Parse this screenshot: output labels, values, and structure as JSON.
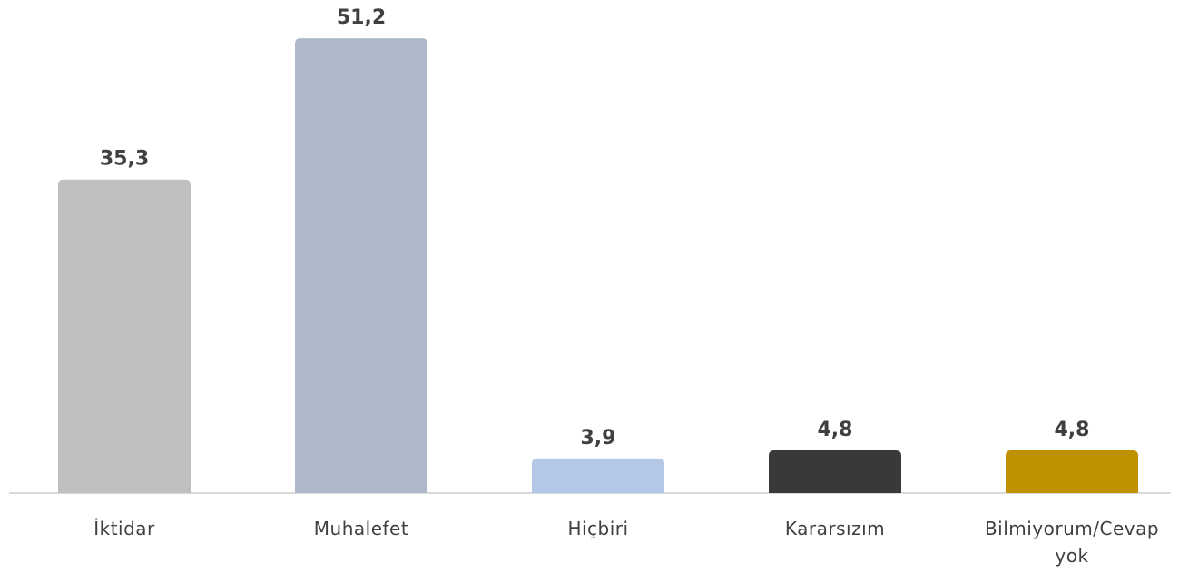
{
  "chart_data": {
    "type": "bar",
    "categories": [
      "İktidar",
      "Muhalefet",
      "Hiçbiri",
      "Kararsızım",
      "Bilmiyorum/Cevap yok"
    ],
    "values": [
      35.3,
      51.2,
      3.9,
      4.8,
      4.8
    ],
    "value_labels": [
      "35,3",
      "51,2",
      "3,9",
      "4,8",
      "4,8"
    ],
    "colors": [
      "#bfbfbf",
      "#adb9ca",
      "#b4c7e7",
      "#3b3838",
      "#bf9000"
    ],
    "ylim": [
      0,
      55
    ]
  }
}
